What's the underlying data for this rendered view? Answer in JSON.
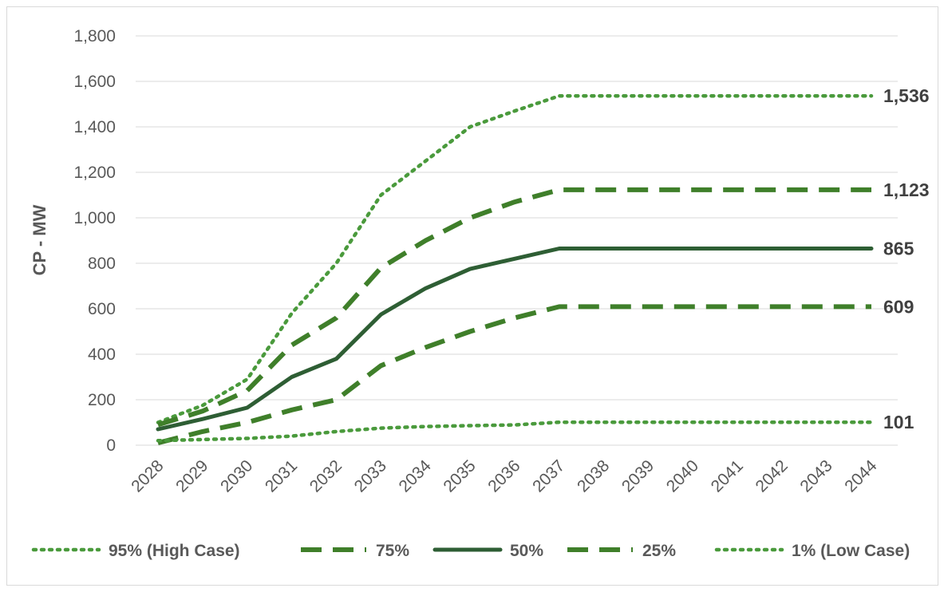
{
  "chart_data": {
    "type": "line",
    "title": "",
    "xlabel": "",
    "ylabel": "CP - MW",
    "ylim": [
      0,
      1800
    ],
    "yticks": [
      0,
      200,
      400,
      600,
      800,
      1000,
      1200,
      1400,
      1600,
      1800
    ],
    "ytick_labels": [
      "0",
      "200",
      "400",
      "600",
      "800",
      "1,000",
      "1,200",
      "1,400",
      "1,600",
      "1,800"
    ],
    "categories": [
      "2028",
      "2029",
      "2030",
      "2031",
      "2032",
      "2033",
      "2034",
      "2035",
      "2036",
      "2037",
      "2038",
      "2039",
      "2040",
      "2041",
      "2042",
      "2043",
      "2044"
    ],
    "grid": true,
    "legend_position": "bottom",
    "series": [
      {
        "name": "95% (High Case)",
        "style": "dotted",
        "color": "#4a9a3c",
        "values": [
          100,
          175,
          290,
          580,
          800,
          1100,
          1250,
          1400,
          1470,
          1536,
          1536,
          1536,
          1536,
          1536,
          1536,
          1536,
          1536
        ],
        "end_label": "1,536"
      },
      {
        "name": "75%",
        "style": "dashed",
        "color": "#3f7f2a",
        "values": [
          90,
          150,
          240,
          440,
          560,
          780,
          900,
          1000,
          1070,
          1123,
          1123,
          1123,
          1123,
          1123,
          1123,
          1123,
          1123
        ],
        "end_label": "1,123"
      },
      {
        "name": "50%",
        "style": "solid",
        "color": "#2e5e34",
        "values": [
          70,
          115,
          165,
          300,
          380,
          575,
          690,
          775,
          820,
          865,
          865,
          865,
          865,
          865,
          865,
          865,
          865
        ],
        "end_label": "865"
      },
      {
        "name": "25%",
        "style": "dashed",
        "color": "#3f7f2a",
        "values": [
          10,
          60,
          100,
          155,
          200,
          350,
          430,
          500,
          560,
          609,
          609,
          609,
          609,
          609,
          609,
          609,
          609
        ],
        "end_label": "609"
      },
      {
        "name": "1% (Low Case)",
        "style": "dotted",
        "color": "#4a9a3c",
        "values": [
          20,
          25,
          30,
          40,
          60,
          75,
          82,
          86,
          89,
          101,
          101,
          101,
          101,
          101,
          101,
          101,
          101
        ],
        "end_label": "101"
      }
    ]
  }
}
